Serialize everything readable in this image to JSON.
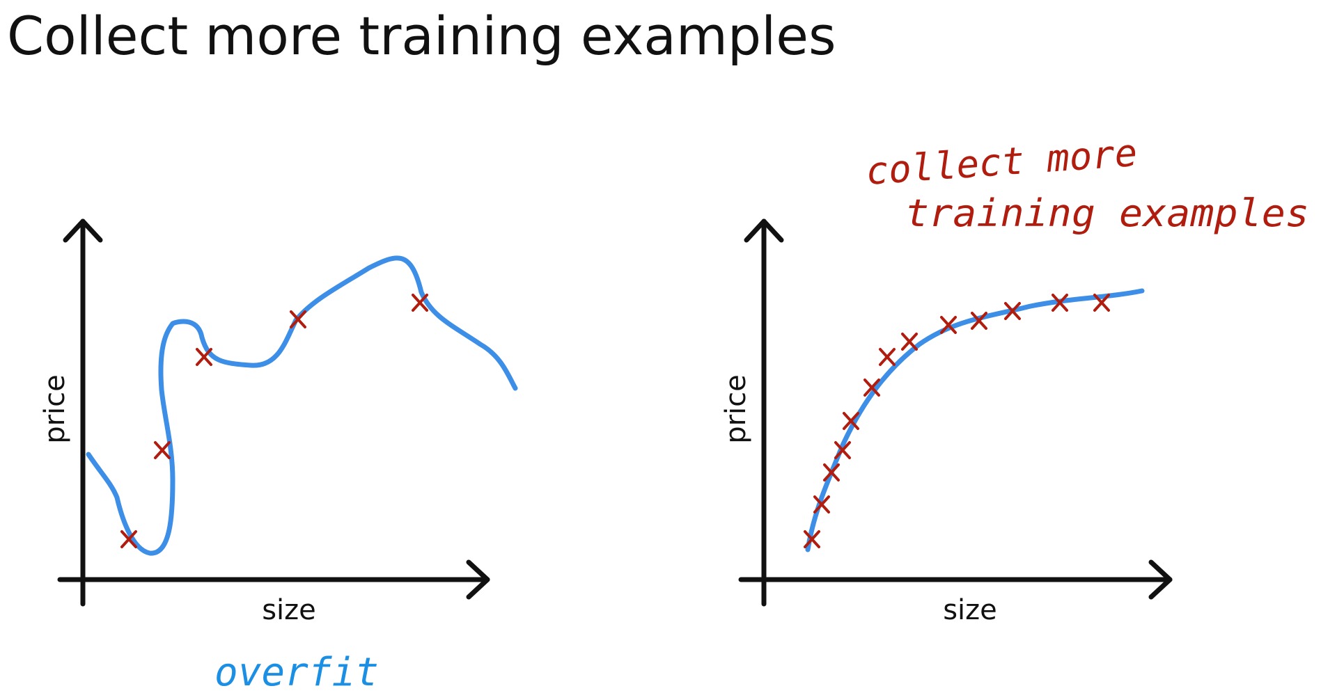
{
  "title": "Collect more training examples",
  "colors": {
    "axis": "#111111",
    "curve": "#3d8ee6",
    "marker": "#b01c0e",
    "note_blue": "#1a8fe3",
    "note_red": "#b01c0e"
  },
  "left_panel": {
    "x_label": "size",
    "y_label": "price",
    "annotation": "overfit"
  },
  "right_panel": {
    "x_label": "size",
    "y_label": "price",
    "annotation_line1": "collect more",
    "annotation_line2": "training examples"
  }
}
